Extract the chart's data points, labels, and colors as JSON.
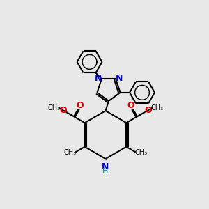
{
  "bg_color": "#e8e8e8",
  "bond_color": "#000000",
  "N_color": "#0000ee",
  "O_color": "#dd0000",
  "H_color": "#008080",
  "lw": 1.5,
  "fig_size": [
    3.0,
    3.0
  ],
  "dpi": 100,
  "xlim": [
    0,
    10
  ],
  "ylim": [
    0,
    10
  ]
}
